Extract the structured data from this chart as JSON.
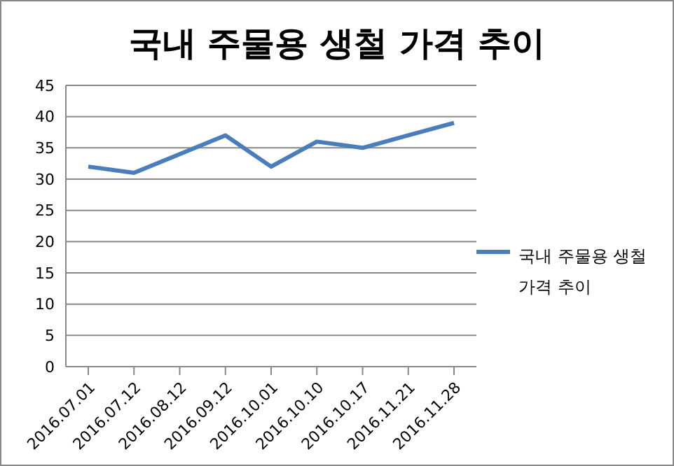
{
  "chart_data": {
    "type": "line",
    "title": "국내 주물용 생철 가격 추이",
    "categories": [
      "2016.07.01",
      "2016.07.12",
      "2016.08.12",
      "2016.09.12",
      "2016.10.01",
      "2016.10.10",
      "2016.10.17",
      "2016.11.21",
      "2016.11.28"
    ],
    "series": [
      {
        "name": "국내 주물용 생철 가격 추이",
        "color": "#4a7ebb",
        "values": [
          32,
          31,
          34,
          37,
          32,
          36,
          35,
          37,
          39
        ]
      }
    ],
    "ylim": [
      0,
      45
    ],
    "yticks": [
      0,
      5,
      10,
      15,
      20,
      25,
      30,
      35,
      40,
      45
    ],
    "grid": "y",
    "legend": "right",
    "marker": "none",
    "line_style": "solid"
  }
}
